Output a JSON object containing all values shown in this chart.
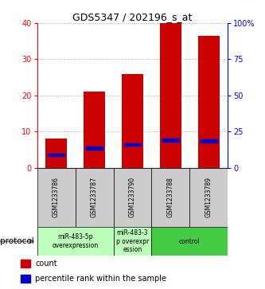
{
  "title": "GDS5347 / 202196_s_at",
  "samples": [
    "GSM1233786",
    "GSM1233787",
    "GSM1233790",
    "GSM1233788",
    "GSM1233789"
  ],
  "count_values": [
    8,
    21,
    26,
    40,
    36.5
  ],
  "percentile_values": [
    9,
    13.5,
    16,
    19,
    18.5
  ],
  "bar_color": "#cc0000",
  "percentile_color": "#0000cc",
  "ylim_left": [
    0,
    40
  ],
  "ylim_right": [
    0,
    100
  ],
  "yticks_left": [
    0,
    10,
    20,
    30,
    40
  ],
  "yticks_right": [
    0,
    25,
    50,
    75,
    100
  ],
  "group_configs": [
    {
      "start": 0,
      "end": 2,
      "label": "miR-483-5p\noverexpression",
      "color": "#bbffbb"
    },
    {
      "start": 2,
      "end": 3,
      "label": "miR-483-3\np overexpr\nession",
      "color": "#bbffbb"
    },
    {
      "start": 3,
      "end": 5,
      "label": "control",
      "color": "#44cc44"
    }
  ],
  "protocol_label": "protocol",
  "legend_count_label": "count",
  "legend_percentile_label": "percentile rank within the sample",
  "background_color": "#ffffff",
  "grid_color": "#aaaaaa",
  "sample_cell_color": "#cccccc",
  "title_fontsize": 9,
  "tick_fontsize": 7,
  "sample_fontsize": 5.5,
  "group_fontsize": 5.5,
  "legend_fontsize": 7,
  "protocol_fontsize": 7.5
}
